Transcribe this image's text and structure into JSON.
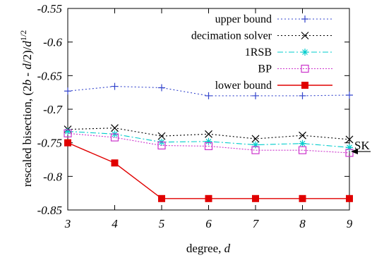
{
  "chart_data": {
    "type": "line",
    "xlabel_prefix": "degree, ",
    "xlabel_var": "d",
    "ylabel": "rescaled bisection, (2b - d/2)/d^1/2",
    "ylabel_parts": [
      "rescaled bisection, (2",
      "b",
      " - ",
      "d",
      "/2)/",
      "d",
      "1/2"
    ],
    "xlim": [
      3,
      9
    ],
    "ylim": [
      -0.85,
      -0.55
    ],
    "xticks": [
      3,
      4,
      5,
      6,
      7,
      8,
      9
    ],
    "xtick_labels": [
      "3",
      "4",
      "5",
      "6",
      "7",
      "8",
      "9"
    ],
    "yticks": [
      -0.55,
      -0.6,
      -0.65,
      -0.7,
      -0.75,
      -0.8,
      -0.85
    ],
    "ytick_labels": [
      "-0.55",
      "-0.6",
      "-0.65",
      "-0.7",
      "-0.75",
      "-0.8",
      "-0.85"
    ],
    "legend_position": "top-right",
    "grid": false,
    "x": [
      3,
      4,
      5,
      6,
      7,
      8,
      9
    ],
    "series": [
      {
        "name": "upper bound",
        "color": "#3344cc",
        "marker": "plus",
        "dash": "2,3",
        "values": [
          -0.673,
          -0.666,
          -0.668,
          -0.68,
          -0.68,
          -0.68,
          -0.679
        ]
      },
      {
        "name": "decimation solver",
        "color": "#000000",
        "marker": "cross",
        "dash": "2,3",
        "values": [
          -0.73,
          -0.728,
          -0.74,
          -0.737,
          -0.744,
          -0.739,
          -0.745
        ]
      },
      {
        "name": "1RSB",
        "color": "#00cccc",
        "marker": "star",
        "dash": "8,3,2,3",
        "values": [
          -0.733,
          -0.737,
          -0.749,
          -0.748,
          -0.753,
          -0.751,
          -0.757
        ]
      },
      {
        "name": "BP",
        "color": "#cc33cc",
        "marker": "square-open",
        "dash": "2,2",
        "values": [
          -0.736,
          -0.742,
          -0.754,
          -0.755,
          -0.761,
          -0.761,
          -0.765
        ]
      },
      {
        "name": "lower bound",
        "color": "#e00000",
        "marker": "square-filled",
        "dash": "",
        "values": [
          -0.75,
          -0.78,
          -0.833,
          -0.833,
          -0.833,
          -0.833,
          -0.833
        ]
      }
    ],
    "annotation": {
      "label": "SK",
      "y": -0.763
    }
  }
}
